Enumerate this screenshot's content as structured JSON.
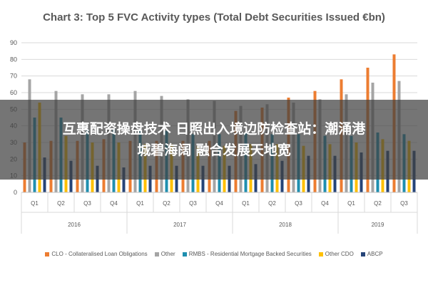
{
  "chart_data": {
    "type": "bar",
    "title": "Chart 3: Top 5 FVC Activity types (Total Debt Securities Issued €bn)",
    "ylim": [
      0,
      90
    ],
    "yticks": [
      0,
      10,
      20,
      30,
      40,
      50,
      60,
      70,
      80,
      90
    ],
    "grid": true,
    "legend_position": "bottom",
    "categories": [
      "Q1",
      "Q2",
      "Q3",
      "Q4",
      "Q1",
      "Q2",
      "Q3",
      "Q4",
      "Q1",
      "Q2",
      "Q3",
      "Q4",
      "Q1",
      "Q2",
      "Q3"
    ],
    "years": [
      {
        "label": "2016",
        "span": 4
      },
      {
        "label": "2017",
        "span": 4
      },
      {
        "label": "2018",
        "span": 4
      },
      {
        "label": "2019",
        "span": 3
      }
    ],
    "series": [
      {
        "name": "CLO - Collateralised Loan Obligations",
        "color": "#ED7D31",
        "values": [
          30,
          31,
          31,
          32,
          31,
          31,
          31,
          31,
          49,
          51,
          57,
          61,
          68,
          75,
          83
        ]
      },
      {
        "name": "Other",
        "color": "#A5A5A5",
        "values": [
          68,
          61,
          59,
          59,
          61,
          58,
          56,
          55,
          52,
          53,
          54,
          56,
          59,
          66,
          67
        ]
      },
      {
        "name": "RMBS - Residential Mortgage Backed Securities",
        "color": "#1F8FAF",
        "values": [
          45,
          45,
          38,
          38,
          37,
          37,
          35,
          35,
          36,
          35,
          35,
          34,
          34,
          36,
          35
        ]
      },
      {
        "name": "Other CDO",
        "color": "#FFC000",
        "values": [
          54,
          34,
          30,
          30,
          29,
          29,
          28,
          28,
          29,
          29,
          28,
          29,
          30,
          32,
          31
        ]
      },
      {
        "name": "ABCP",
        "color": "#264478",
        "values": [
          21,
          19,
          16,
          15,
          16,
          16,
          16,
          16,
          17,
          19,
          22,
          22,
          24,
          25,
          25
        ]
      }
    ]
  },
  "overlay": {
    "line1": "互惠配资操盘技术 日照出入境边防检查站：潮涌港",
    "line2": "城碧海阔 融合发展天地宽"
  }
}
